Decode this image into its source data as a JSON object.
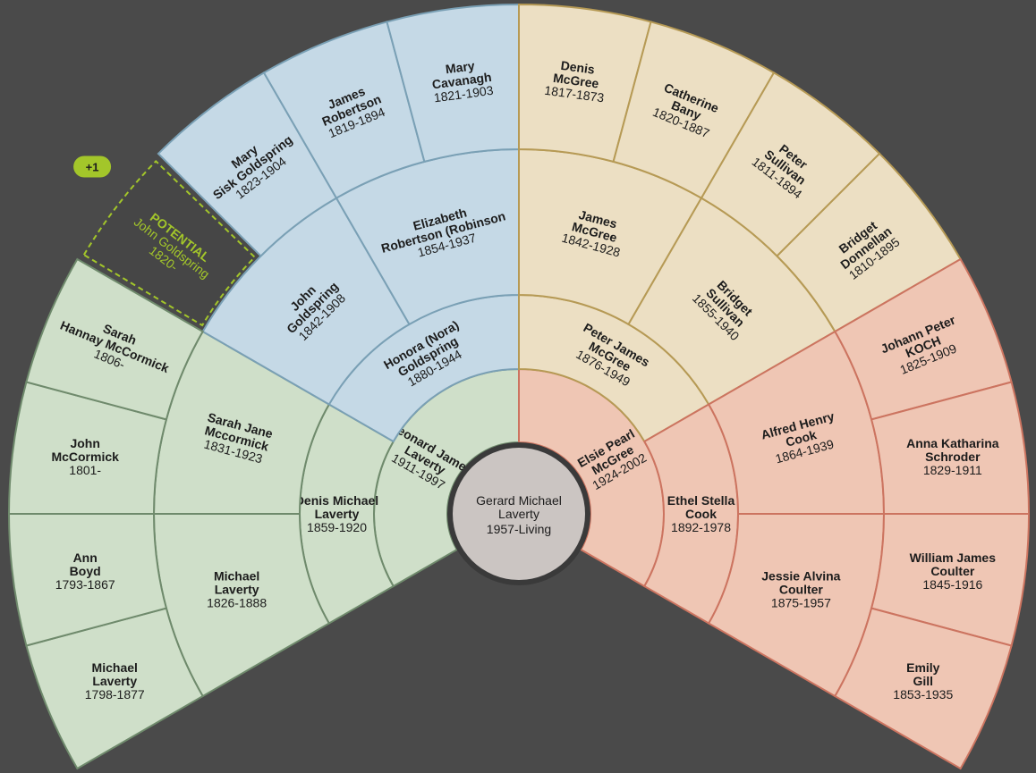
{
  "root": {
    "name_lines": [
      "Gerard Michael",
      "Laverty"
    ],
    "dates": "1957-Living"
  },
  "colors": {
    "background": "#4a4a4a",
    "blue": {
      "fill": "#c5d9e6",
      "stroke": "#7aa0b5"
    },
    "tan": {
      "fill": "#ecdfc3",
      "stroke": "#b69a55"
    },
    "green": {
      "fill": "#cfdfc9",
      "stroke": "#6f8a6c"
    },
    "red": {
      "fill": "#efc6b4",
      "stroke": "#cc7460"
    },
    "potential": "#a3c62a",
    "center": "#cbc5c2",
    "center_ring": "#3a3a3a"
  },
  "potential": {
    "badge": "+1",
    "label": "POTENTIAL",
    "name_lines": [
      "John Goldspring"
    ],
    "dates": "1820-"
  },
  "people": [
    {
      "id": "p1",
      "gen": 1,
      "group": "green",
      "name_lines": [
        "Leonard James",
        "Laverty"
      ],
      "dates": "1911-1997"
    },
    {
      "id": "p2",
      "gen": 1,
      "group": "red",
      "name_lines": [
        "Elsie Pearl",
        "McGree"
      ],
      "dates": "1924-2002"
    },
    {
      "id": "p3",
      "gen": 2,
      "group": "green",
      "name_lines": [
        "Denis Michael",
        "Laverty"
      ],
      "dates": "1859-1920"
    },
    {
      "id": "p4",
      "gen": 2,
      "group": "blue",
      "name_lines": [
        "Honora (Nora)",
        "Goldspring"
      ],
      "dates": "1880-1944"
    },
    {
      "id": "p5",
      "gen": 2,
      "group": "tan",
      "name_lines": [
        "Peter James",
        "McGree"
      ],
      "dates": "1876-1949"
    },
    {
      "id": "p6",
      "gen": 2,
      "group": "red",
      "name_lines": [
        "Ethel Stella",
        "Cook"
      ],
      "dates": "1892-1978"
    },
    {
      "id": "p7",
      "gen": 3,
      "group": "green",
      "name_lines": [
        "Michael",
        "Laverty"
      ],
      "dates": "1826-1888"
    },
    {
      "id": "p8",
      "gen": 3,
      "group": "green",
      "name_lines": [
        "Sarah Jane",
        "Mccormick"
      ],
      "dates": "1831-1923"
    },
    {
      "id": "p9",
      "gen": 3,
      "group": "blue",
      "name_lines": [
        "John",
        "Goldspring"
      ],
      "dates": "1842-1908"
    },
    {
      "id": "p10",
      "gen": 3,
      "group": "blue",
      "name_lines": [
        "Elizabeth",
        "Robertson (Robinson"
      ],
      "dates": "1854-1937"
    },
    {
      "id": "p11",
      "gen": 3,
      "group": "tan",
      "name_lines": [
        "James",
        "McGree"
      ],
      "dates": "1842-1928"
    },
    {
      "id": "p12",
      "gen": 3,
      "group": "tan",
      "name_lines": [
        "Bridget",
        "Sullivan"
      ],
      "dates": "1855-1940"
    },
    {
      "id": "p13",
      "gen": 3,
      "group": "red",
      "name_lines": [
        "Alfred Henry",
        "Cook"
      ],
      "dates": "1864-1939"
    },
    {
      "id": "p14",
      "gen": 3,
      "group": "red",
      "name_lines": [
        "Jessie Alvina",
        "Coulter"
      ],
      "dates": "1875-1957"
    },
    {
      "id": "p15",
      "gen": 4,
      "group": "green",
      "name_lines": [
        "Michael",
        "Laverty"
      ],
      "dates": "1798-1877"
    },
    {
      "id": "p16",
      "gen": 4,
      "group": "green",
      "name_lines": [
        "Ann",
        "Boyd"
      ],
      "dates": "1793-1867"
    },
    {
      "id": "p17",
      "gen": 4,
      "group": "green",
      "name_lines": [
        "John",
        "McCormick"
      ],
      "dates": "1801-"
    },
    {
      "id": "p18",
      "gen": 4,
      "group": "green",
      "name_lines": [
        "Sarah",
        "Hannay McCormick"
      ],
      "dates": "1806-"
    },
    {
      "id": "p19",
      "gen": 4,
      "group": "potential",
      "potential": true
    },
    {
      "id": "p20",
      "gen": 4,
      "group": "blue",
      "name_lines": [
        "Mary",
        "Sisk Goldspring"
      ],
      "dates": "1823-1904"
    },
    {
      "id": "p21",
      "gen": 4,
      "group": "blue",
      "name_lines": [
        "James",
        "Robertson"
      ],
      "dates": "1819-1894"
    },
    {
      "id": "p22",
      "gen": 4,
      "group": "blue",
      "name_lines": [
        "Mary",
        "Cavanagh"
      ],
      "dates": "1821-1903"
    },
    {
      "id": "p23",
      "gen": 4,
      "group": "tan",
      "name_lines": [
        "Denis",
        "McGree"
      ],
      "dates": "1817-1873"
    },
    {
      "id": "p24",
      "gen": 4,
      "group": "tan",
      "name_lines": [
        "Catherine",
        "Bany"
      ],
      "dates": "1820-1887"
    },
    {
      "id": "p25",
      "gen": 4,
      "group": "tan",
      "name_lines": [
        "Peter",
        "Sullivan"
      ],
      "dates": "1811-1894"
    },
    {
      "id": "p26",
      "gen": 4,
      "group": "tan",
      "name_lines": [
        "Bridget",
        "Donnellan"
      ],
      "dates": "1810-1895"
    },
    {
      "id": "p27",
      "gen": 4,
      "group": "red",
      "name_lines": [
        "Johann Peter",
        "KOCH"
      ],
      "dates": "1825-1909"
    },
    {
      "id": "p28",
      "gen": 4,
      "group": "red",
      "name_lines": [
        "Anna Katharina",
        "Schroder"
      ],
      "dates": "1829-1911"
    },
    {
      "id": "p29",
      "gen": 4,
      "group": "red",
      "name_lines": [
        "William James",
        "Coulter"
      ],
      "dates": "1845-1916"
    },
    {
      "id": "p30",
      "gen": 4,
      "group": "red",
      "name_lines": [
        "Emily",
        "Gill"
      ],
      "dates": "1853-1935"
    }
  ]
}
